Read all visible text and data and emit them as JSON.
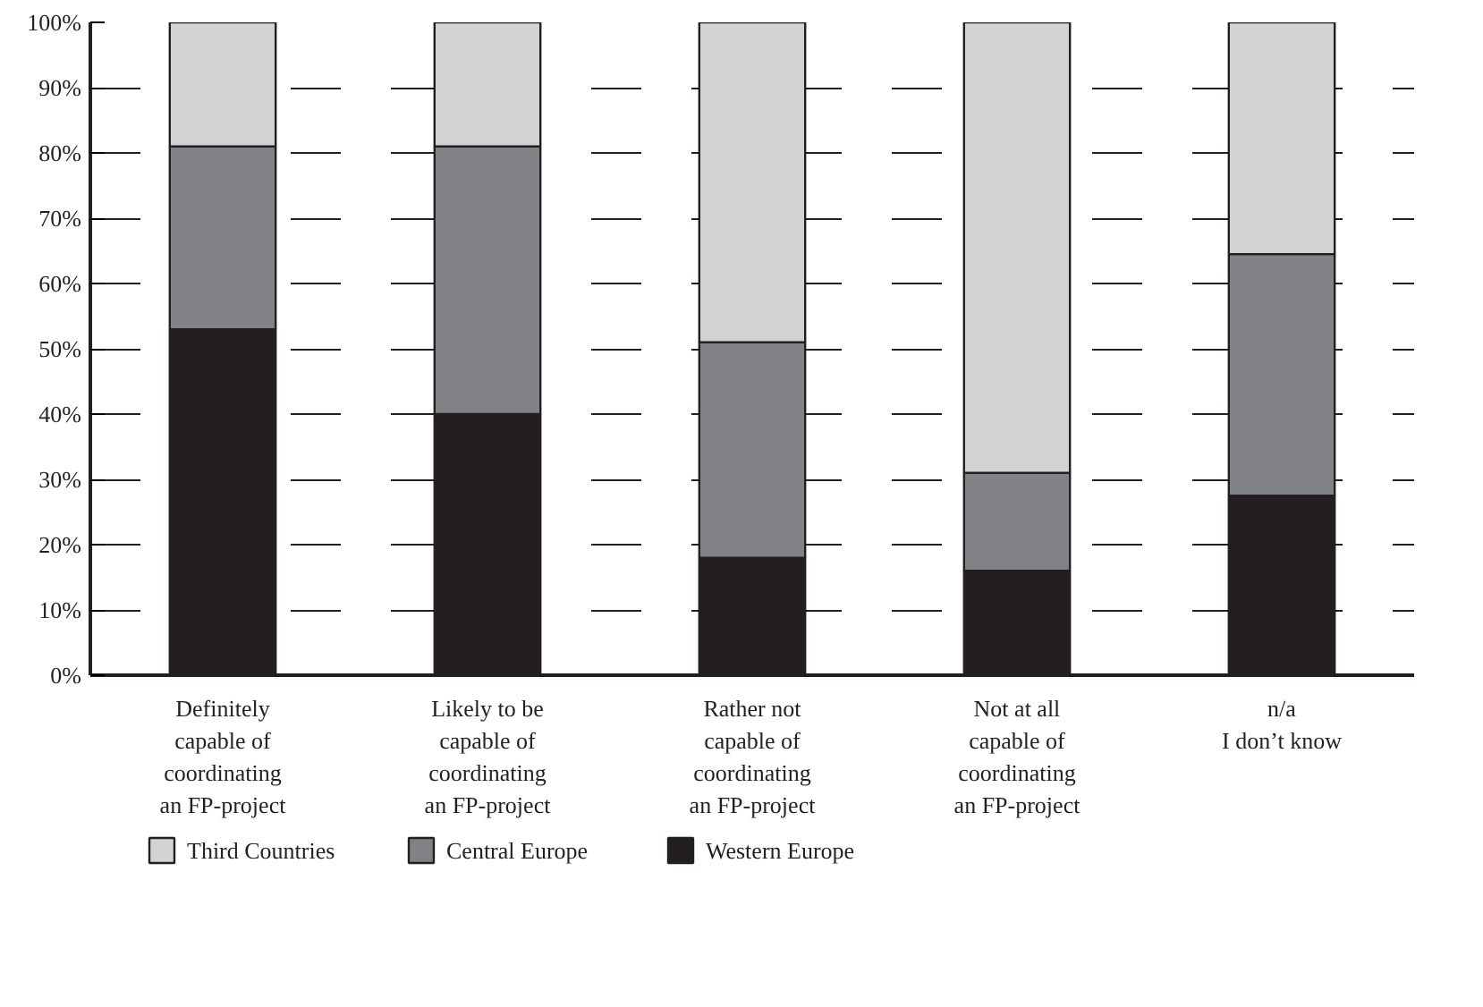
{
  "chart_data": {
    "type": "bar",
    "stacked": true,
    "categories": [
      "Definitely\ncapable of\ncoordinating\nan FP-project",
      "Likely to be\ncapable of\ncoordinating\nan FP-project",
      "Rather not\ncapable of\ncoordinating\nan FP-project",
      "Not at all\ncapable of\ncoordinating\nan FP-project",
      "n/a\nI don’t know"
    ],
    "series": [
      {
        "name": "Western Europe",
        "color": "#231f20",
        "values": [
          53,
          40,
          18,
          16,
          27.5
        ]
      },
      {
        "name": "Central Europe",
        "color": "#808285",
        "values": [
          28,
          41,
          33,
          15,
          37
        ]
      },
      {
        "name": "Third Countries",
        "color": "#d1d3d4",
        "values": [
          19,
          19,
          49,
          69,
          35.5
        ]
      }
    ],
    "ylim": [
      0,
      100
    ],
    "yticks": [
      {
        "value": 0,
        "label": "0%"
      },
      {
        "value": 10,
        "label": "10%"
      },
      {
        "value": 20,
        "label": "20%"
      },
      {
        "value": 30,
        "label": "30%"
      },
      {
        "value": 40,
        "label": "40%"
      },
      {
        "value": 50,
        "label": "50%"
      },
      {
        "value": 60,
        "label": "60%"
      },
      {
        "value": 70,
        "label": "70%"
      },
      {
        "value": 80,
        "label": "80%"
      },
      {
        "value": 90,
        "label": "90%"
      },
      {
        "value": 100,
        "label": "100%"
      }
    ],
    "grid": "y",
    "legend": "bottom"
  }
}
